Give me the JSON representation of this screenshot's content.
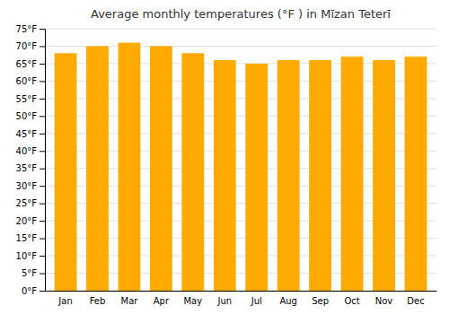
{
  "chart_data": {
    "type": "bar",
    "title": "Average monthly temperatures (°F ) in Mīzan Teterī",
    "categories": [
      "Jan",
      "Feb",
      "Mar",
      "Apr",
      "May",
      "Jun",
      "Jul",
      "Aug",
      "Sep",
      "Oct",
      "Nov",
      "Dec"
    ],
    "values": [
      68,
      70,
      71,
      70,
      68,
      66,
      65,
      66,
      66,
      67,
      66,
      67
    ],
    "color": "#FFAA00",
    "ylim": [
      0,
      75
    ],
    "yticks": [
      {
        "value": 0,
        "label": "0°F"
      },
      {
        "value": 5,
        "label": "5°F"
      },
      {
        "value": 10,
        "label": "10°F"
      },
      {
        "value": 15,
        "label": "15°F"
      },
      {
        "value": 20,
        "label": "20°F"
      },
      {
        "value": 25,
        "label": "25°F"
      },
      {
        "value": 30,
        "label": "30°F"
      },
      {
        "value": 35,
        "label": "35°F"
      },
      {
        "value": 40,
        "label": "40°F"
      },
      {
        "value": 45,
        "label": "45°F"
      },
      {
        "value": 50,
        "label": "50°F"
      },
      {
        "value": 55,
        "label": "55°F"
      },
      {
        "value": 60,
        "label": "60°F"
      },
      {
        "value": 65,
        "label": "65°F"
      },
      {
        "value": 70,
        "label": "70°F"
      },
      {
        "value": 75,
        "label": "75°F"
      }
    ],
    "grid": true
  }
}
